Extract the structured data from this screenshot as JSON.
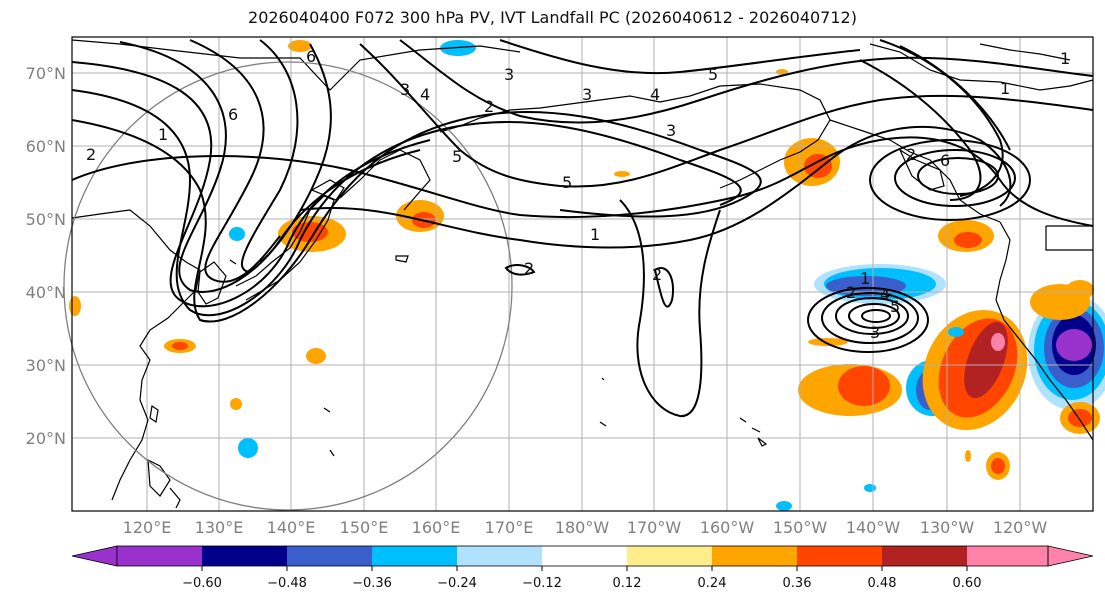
{
  "title": "2026040400 F072 300 hPa PV, IVT Landfall PC (2026040612 - 2026040712)",
  "lat_labels": [
    "70°N",
    "60°N",
    "50°N",
    "40°N",
    "30°N",
    "20°N"
  ],
  "lon_labels": [
    "120°E",
    "130°E",
    "140°E",
    "150°E",
    "160°E",
    "170°E",
    "180°W",
    "170°W",
    "160°W",
    "150°W",
    "140°W",
    "130°W",
    "120°W"
  ],
  "colorbar": {
    "colors": [
      "#9932cc",
      "#00008b",
      "#3a5fcd",
      "#00bfff",
      "#b0e2ff",
      "#ffffff",
      "#ffec8b",
      "#ffa500",
      "#ff4500",
      "#b22222",
      "#ff82ab"
    ],
    "tick_labels": [
      "−0.60",
      "−0.48",
      "−0.36",
      "−0.24",
      "−0.12",
      "0.12",
      "0.24",
      "0.36",
      "0.48",
      "0.60"
    ]
  },
  "contour_labels": [
    "6",
    "1",
    "2",
    "3",
    "4",
    "5",
    "6",
    "2",
    "3",
    "4",
    "3",
    "5",
    "1",
    "2",
    "2",
    "1",
    "5",
    "6",
    "1",
    "2",
    "3",
    "1",
    "2",
    "3",
    "4",
    "5"
  ],
  "colors": {
    "land": "#000000",
    "grid": "#b0b0b0",
    "circle": "#808080",
    "contour": "#000000"
  }
}
